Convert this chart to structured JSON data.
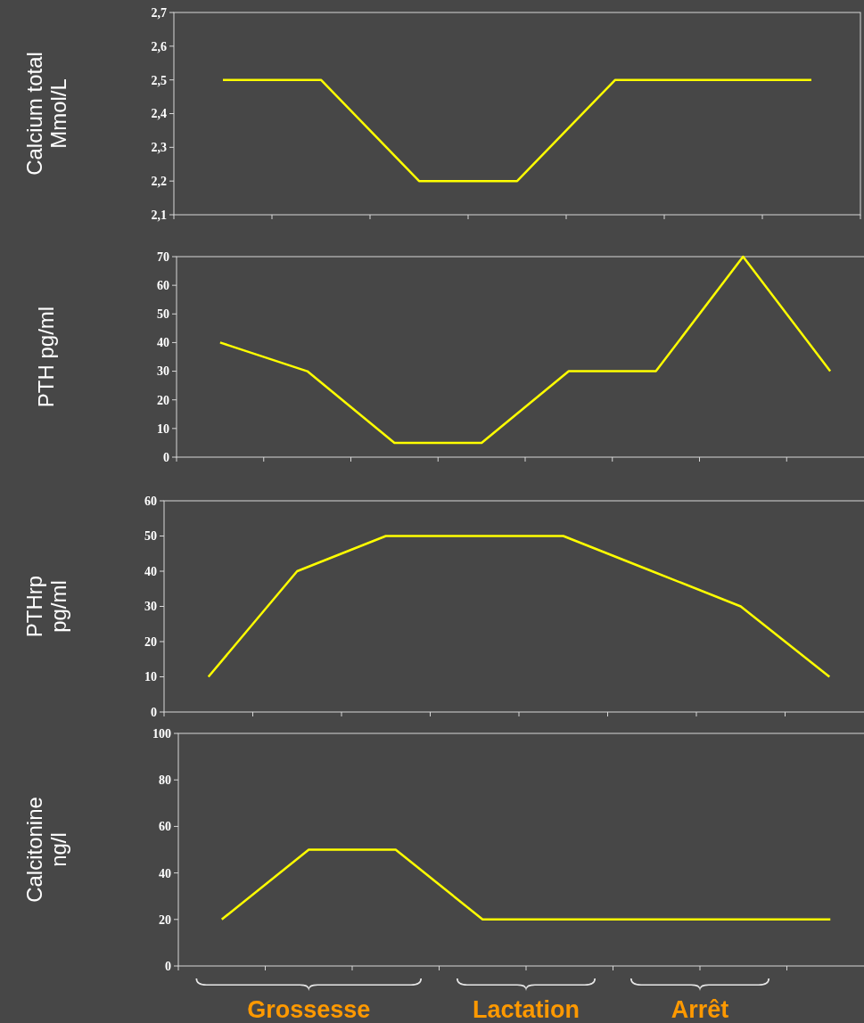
{
  "chart_data": [
    {
      "type": "line",
      "ylabel": "Calcium total\nMmol/L",
      "categories": [
        null,
        null,
        null,
        null,
        null,
        null,
        null
      ],
      "series": [
        {
          "color": "#ffff00",
          "values": [
            2.5,
            2.5,
            2.2,
            2.2,
            2.5,
            2.5,
            2.5
          ]
        }
      ],
      "ylim": [
        2.1,
        2.7
      ],
      "yticks": [
        {
          "value": 2.1,
          "label": "2,1"
        },
        {
          "value": 2.2,
          "label": "2,2"
        },
        {
          "value": 2.3,
          "label": "2,3"
        },
        {
          "value": 2.4,
          "label": "2,4"
        },
        {
          "value": 2.5,
          "label": "2,5"
        },
        {
          "value": 2.6,
          "label": "2,6"
        },
        {
          "value": 2.7,
          "label": "2,7"
        }
      ],
      "grid": false,
      "marker": "none"
    },
    {
      "type": "line",
      "ylabel": "PTH pg/ml",
      "categories": [
        null,
        null,
        null,
        null,
        null,
        null,
        null,
        null
      ],
      "series": [
        {
          "color": "#ffff00",
          "values": [
            40,
            30,
            5,
            5,
            30,
            30,
            70,
            30
          ]
        }
      ],
      "ylim": [
        0,
        70
      ],
      "yticks": [
        0,
        10,
        20,
        30,
        40,
        50,
        60,
        70
      ],
      "grid": false,
      "marker": "none"
    },
    {
      "type": "line",
      "ylabel": "PTHrp\npg/ml",
      "categories": [
        null,
        null,
        null,
        null,
        null,
        null,
        null,
        null
      ],
      "series": [
        {
          "color": "#ffff00",
          "values": [
            10,
            40,
            50,
            50,
            50,
            40,
            30,
            10
          ]
        }
      ],
      "ylim": [
        0,
        60
      ],
      "yticks": [
        0,
        10,
        20,
        30,
        40,
        50,
        60
      ],
      "grid": false,
      "marker": "none"
    },
    {
      "type": "line",
      "ylabel": "Calcitonine\nng/l",
      "categories": [
        null,
        null,
        null,
        null,
        null,
        null,
        null,
        null
      ],
      "series": [
        {
          "color": "#ffff00",
          "values": [
            20,
            50,
            50,
            20,
            20,
            20,
            20,
            20
          ]
        }
      ],
      "ylim": [
        0,
        100
      ],
      "yticks": [
        0,
        20,
        40,
        60,
        80,
        100
      ],
      "grid": false,
      "marker": "none",
      "annotations": [
        "Grossesse",
        "Lactation",
        "Arrêt"
      ]
    }
  ]
}
